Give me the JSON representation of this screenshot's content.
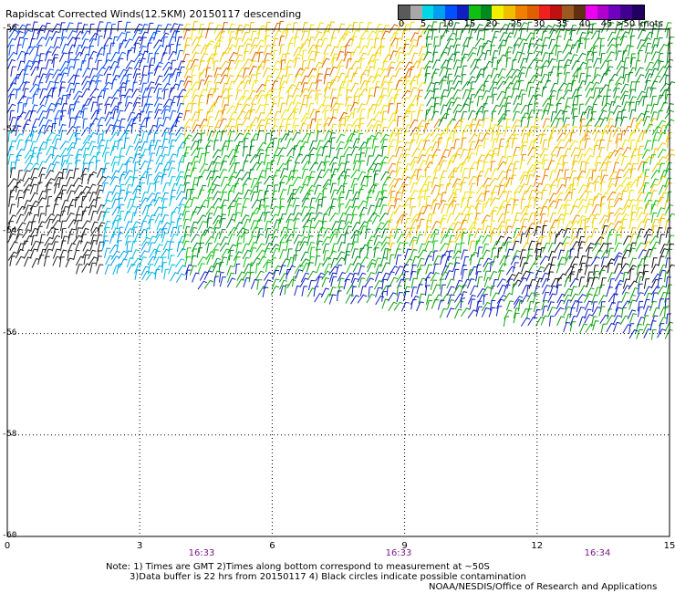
{
  "title": "Rapidscat Corrected Winds(12.5KM) 20150117 descending",
  "scale": {
    "segment_colors": [
      "#5a5a5a",
      "#a8a8a8",
      "#00d8e8",
      "#00a0f0",
      "#0050ff",
      "#1020c0",
      "#10c010",
      "#008a20",
      "#f0f000",
      "#f0c000",
      "#f08000",
      "#e06000",
      "#f02020",
      "#c01010",
      "#9a5a20",
      "#603010",
      "#f000f0",
      "#b000d0",
      "#7000c0",
      "#400090",
      "#200060"
    ],
    "ticks": [
      "0",
      "5",
      "10",
      "15",
      "20",
      "25",
      "30",
      "35",
      "40",
      "45",
      ">50 knots"
    ]
  },
  "axes": {
    "lat_labels": [
      "-50",
      "-52",
      "-54",
      "-56",
      "-58",
      "-60"
    ],
    "lon_labels": [
      "0",
      "3",
      "6",
      "9",
      "12",
      "15"
    ],
    "lat_range": [
      -60,
      -50
    ],
    "lon_range": [
      0,
      15
    ],
    "grid": "dotted"
  },
  "times": [
    "16:33",
    "16:33",
    "16:34"
  ],
  "notes": {
    "line1": "Note: 1) Times are GMT 2)Times along bottom correspond to measurement at ~50S",
    "line2": "3)Data buffer is 22 hrs from 20150117 4) Black circles indicate possible contamination",
    "credit": "NOAA/NESDIS/Office of Research and Applications"
  }
}
